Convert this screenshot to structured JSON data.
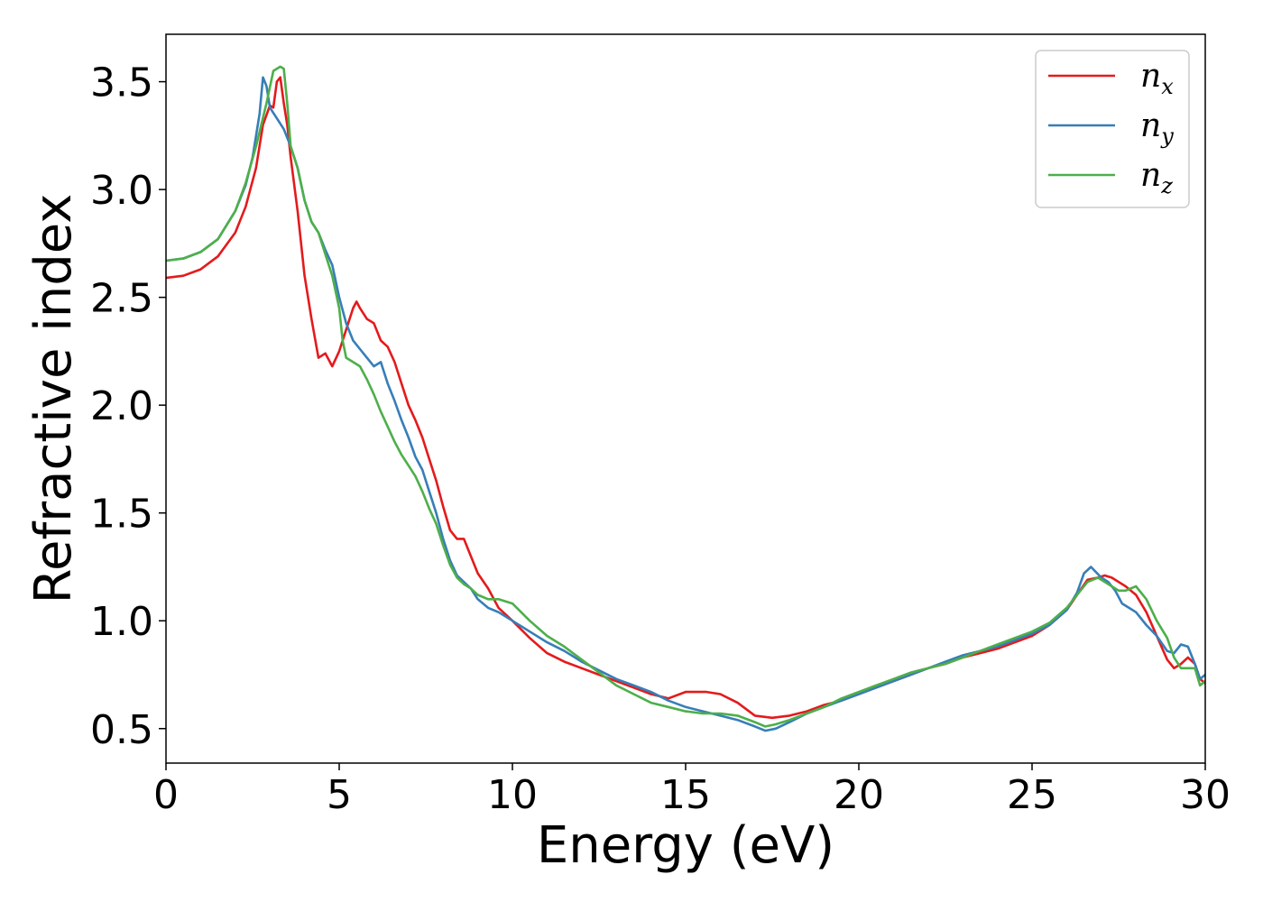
{
  "chart_data": {
    "type": "line",
    "title": "",
    "xlabel": "Energy (eV)",
    "ylabel": "Refractive index",
    "xlim": [
      0,
      30
    ],
    "ylim": [
      0.34,
      3.72
    ],
    "xticks": [
      0,
      5,
      10,
      15,
      20,
      25,
      30
    ],
    "xtick_labels": [
      "0",
      "5",
      "10",
      "15",
      "20",
      "25",
      "30"
    ],
    "yticks": [
      0.5,
      1.0,
      1.5,
      2.0,
      2.5,
      3.0,
      3.5
    ],
    "ytick_labels": [
      "0.5",
      "1.0",
      "1.5",
      "2.0",
      "2.5",
      "3.0",
      "3.5"
    ],
    "grid": false,
    "legend_position": "top-right",
    "series": [
      {
        "name": "n_x",
        "legend_base": "n",
        "legend_sub": "x",
        "color": "#e41a1c",
        "x": [
          0,
          0.5,
          1,
          1.5,
          2,
          2.3,
          2.6,
          2.8,
          3.0,
          3.1,
          3.2,
          3.3,
          3.4,
          3.5,
          3.6,
          3.8,
          4.0,
          4.2,
          4.4,
          4.6,
          4.8,
          5.0,
          5.2,
          5.4,
          5.5,
          5.6,
          5.8,
          6.0,
          6.2,
          6.4,
          6.6,
          6.8,
          7.0,
          7.2,
          7.4,
          7.6,
          7.8,
          8.0,
          8.2,
          8.4,
          8.6,
          8.8,
          9.0,
          9.3,
          9.6,
          10.0,
          10.5,
          11.0,
          11.5,
          12.0,
          12.5,
          13.0,
          13.5,
          14.0,
          14.5,
          15.0,
          15.3,
          15.6,
          16.0,
          16.5,
          17.0,
          17.5,
          18.0,
          18.5,
          19.0,
          19.5,
          20.0,
          20.5,
          21.0,
          21.5,
          22.0,
          22.5,
          23.0,
          23.5,
          24.0,
          24.5,
          25.0,
          25.5,
          26.0,
          26.3,
          26.6,
          26.9,
          27.1,
          27.3,
          27.5,
          27.7,
          28.0,
          28.3,
          28.6,
          28.9,
          29.1,
          29.3,
          29.5,
          29.7,
          29.85,
          30.0
        ],
        "y": [
          2.59,
          2.6,
          2.63,
          2.69,
          2.8,
          2.92,
          3.1,
          3.3,
          3.39,
          3.38,
          3.5,
          3.52,
          3.4,
          3.3,
          3.15,
          2.9,
          2.6,
          2.4,
          2.22,
          2.24,
          2.18,
          2.25,
          2.35,
          2.45,
          2.48,
          2.45,
          2.4,
          2.38,
          2.3,
          2.27,
          2.2,
          2.1,
          2.0,
          1.93,
          1.85,
          1.75,
          1.65,
          1.53,
          1.42,
          1.38,
          1.38,
          1.3,
          1.22,
          1.15,
          1.06,
          1.0,
          0.92,
          0.85,
          0.81,
          0.78,
          0.75,
          0.72,
          0.69,
          0.66,
          0.64,
          0.67,
          0.67,
          0.67,
          0.66,
          0.62,
          0.56,
          0.55,
          0.56,
          0.58,
          0.61,
          0.63,
          0.66,
          0.69,
          0.72,
          0.75,
          0.78,
          0.8,
          0.83,
          0.85,
          0.87,
          0.9,
          0.93,
          0.98,
          1.05,
          1.12,
          1.19,
          1.2,
          1.21,
          1.2,
          1.18,
          1.16,
          1.12,
          1.04,
          0.93,
          0.82,
          0.78,
          0.8,
          0.83,
          0.8,
          0.73,
          0.71
        ]
      },
      {
        "name": "n_y",
        "legend_base": "n",
        "legend_sub": "y",
        "color": "#377eb8",
        "x": [
          0,
          0.5,
          1,
          1.5,
          2,
          2.3,
          2.5,
          2.7,
          2.8,
          2.9,
          3.0,
          3.2,
          3.4,
          3.6,
          3.8,
          4.0,
          4.2,
          4.4,
          4.6,
          4.8,
          5.0,
          5.2,
          5.4,
          5.6,
          5.8,
          6.0,
          6.2,
          6.4,
          6.6,
          6.8,
          7.0,
          7.2,
          7.4,
          7.6,
          7.8,
          8.0,
          8.2,
          8.4,
          8.6,
          8.8,
          9.0,
          9.3,
          9.6,
          10.0,
          10.5,
          11.0,
          11.5,
          12.0,
          12.5,
          13.0,
          13.5,
          14.0,
          14.5,
          15.0,
          15.5,
          16.0,
          16.5,
          17.0,
          17.3,
          17.6,
          18.0,
          18.5,
          19.0,
          19.5,
          20.0,
          20.5,
          21.0,
          21.5,
          22.0,
          22.5,
          23.0,
          23.5,
          24.0,
          24.5,
          25.0,
          25.5,
          26.0,
          26.3,
          26.5,
          26.7,
          27.0,
          27.2,
          27.4,
          27.6,
          27.8,
          28.0,
          28.3,
          28.6,
          28.9,
          29.1,
          29.3,
          29.5,
          29.7,
          29.85,
          30.0
        ],
        "y": [
          2.67,
          2.68,
          2.71,
          2.77,
          2.9,
          3.02,
          3.15,
          3.35,
          3.52,
          3.48,
          3.38,
          3.33,
          3.28,
          3.2,
          3.1,
          2.95,
          2.85,
          2.8,
          2.72,
          2.65,
          2.5,
          2.38,
          2.3,
          2.26,
          2.22,
          2.18,
          2.2,
          2.1,
          2.02,
          1.93,
          1.85,
          1.76,
          1.7,
          1.6,
          1.5,
          1.38,
          1.28,
          1.21,
          1.18,
          1.15,
          1.1,
          1.06,
          1.04,
          1.0,
          0.95,
          0.9,
          0.86,
          0.81,
          0.77,
          0.73,
          0.7,
          0.67,
          0.63,
          0.6,
          0.58,
          0.56,
          0.54,
          0.51,
          0.49,
          0.5,
          0.53,
          0.57,
          0.6,
          0.63,
          0.66,
          0.69,
          0.72,
          0.75,
          0.78,
          0.81,
          0.84,
          0.86,
          0.88,
          0.91,
          0.94,
          0.98,
          1.05,
          1.13,
          1.22,
          1.25,
          1.2,
          1.18,
          1.14,
          1.08,
          1.06,
          1.04,
          0.98,
          0.93,
          0.86,
          0.85,
          0.89,
          0.88,
          0.8,
          0.73,
          0.75
        ]
      },
      {
        "name": "n_z",
        "legend_base": "n",
        "legend_sub": "z",
        "color": "#4daf4a",
        "x": [
          0,
          0.5,
          1,
          1.5,
          2,
          2.3,
          2.6,
          2.9,
          3.1,
          3.3,
          3.4,
          3.5,
          3.6,
          3.8,
          4.0,
          4.2,
          4.4,
          4.6,
          4.8,
          5.0,
          5.1,
          5.2,
          5.4,
          5.6,
          5.8,
          6.0,
          6.2,
          6.4,
          6.6,
          6.8,
          7.0,
          7.2,
          7.4,
          7.6,
          7.8,
          8.0,
          8.2,
          8.4,
          8.6,
          8.8,
          9.0,
          9.3,
          9.6,
          10.0,
          10.5,
          11.0,
          11.5,
          12.0,
          12.5,
          13.0,
          13.5,
          14.0,
          14.5,
          15.0,
          15.5,
          16.0,
          16.5,
          17.0,
          17.3,
          17.6,
          18.0,
          18.5,
          19.0,
          19.5,
          20.0,
          20.5,
          21.0,
          21.5,
          22.0,
          22.5,
          23.0,
          23.5,
          24.0,
          24.5,
          25.0,
          25.5,
          26.0,
          26.3,
          26.6,
          26.9,
          27.1,
          27.3,
          27.5,
          27.7,
          28.0,
          28.3,
          28.6,
          28.9,
          29.1,
          29.3,
          29.5,
          29.7,
          29.85,
          30.0
        ],
        "y": [
          2.67,
          2.68,
          2.71,
          2.77,
          2.9,
          3.03,
          3.2,
          3.4,
          3.55,
          3.57,
          3.56,
          3.4,
          3.2,
          3.1,
          2.95,
          2.85,
          2.8,
          2.7,
          2.6,
          2.45,
          2.3,
          2.22,
          2.2,
          2.18,
          2.12,
          2.05,
          1.97,
          1.9,
          1.83,
          1.77,
          1.72,
          1.67,
          1.6,
          1.52,
          1.45,
          1.35,
          1.26,
          1.2,
          1.17,
          1.15,
          1.12,
          1.1,
          1.1,
          1.08,
          1.0,
          0.93,
          0.88,
          0.82,
          0.76,
          0.7,
          0.66,
          0.62,
          0.6,
          0.58,
          0.57,
          0.57,
          0.56,
          0.53,
          0.51,
          0.52,
          0.54,
          0.57,
          0.6,
          0.64,
          0.67,
          0.7,
          0.73,
          0.76,
          0.78,
          0.8,
          0.83,
          0.86,
          0.89,
          0.92,
          0.95,
          0.99,
          1.06,
          1.12,
          1.18,
          1.2,
          1.18,
          1.16,
          1.14,
          1.14,
          1.16,
          1.1,
          1.0,
          0.92,
          0.83,
          0.78,
          0.78,
          0.78,
          0.7,
          0.72
        ]
      }
    ]
  }
}
